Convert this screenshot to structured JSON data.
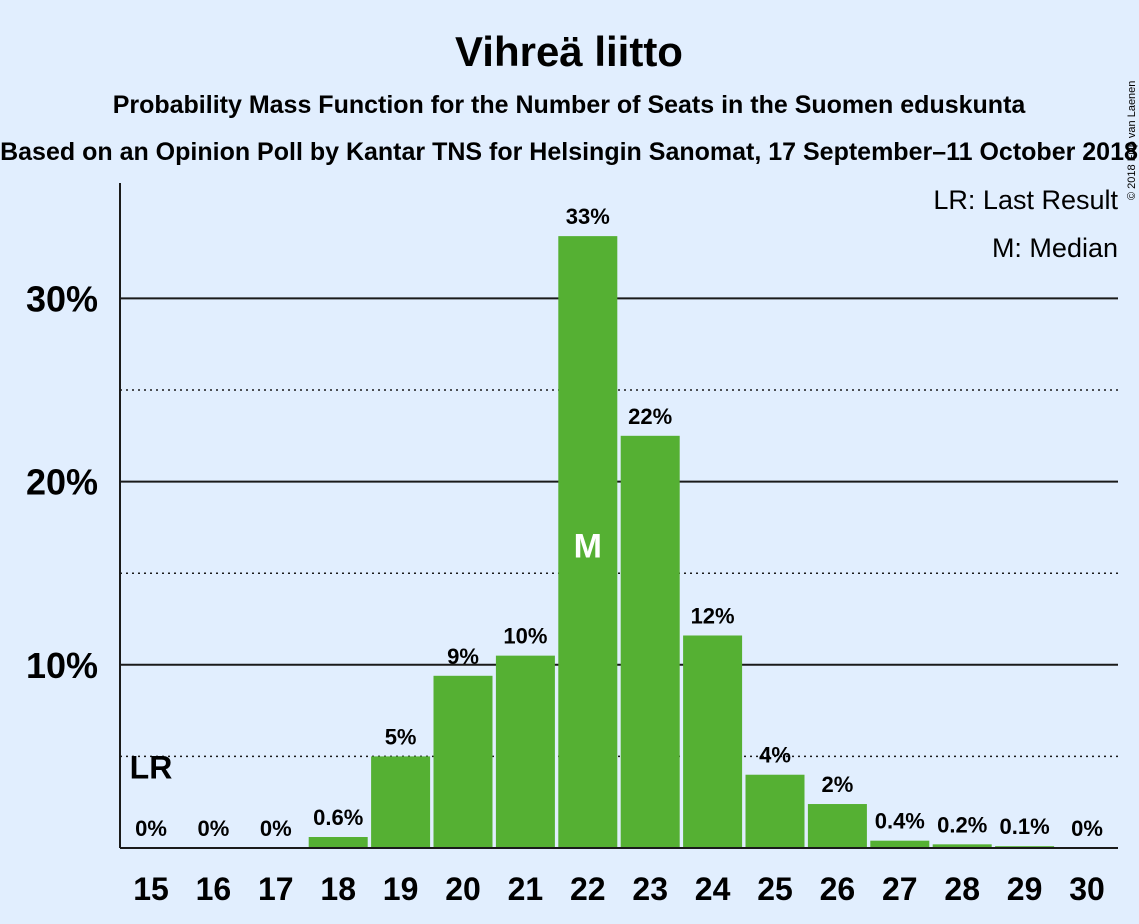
{
  "chart_data": {
    "type": "bar",
    "title": "Vihreä liitto",
    "subtitle_line1": "Probability Mass Function for the Number of Seats in the Suomen eduskunta",
    "subtitle_line2": "Based on an Opinion Poll by Kantar TNS for Helsingin Sanomat, 17 September–11 October 2018",
    "copyright": "© 2018 Filip van Laenen",
    "categories": [
      "15",
      "16",
      "17",
      "18",
      "19",
      "20",
      "21",
      "22",
      "23",
      "24",
      "25",
      "26",
      "27",
      "28",
      "29",
      "30"
    ],
    "values": [
      0,
      0,
      0,
      0.6,
      5.0,
      9.4,
      10.5,
      33.4,
      22.5,
      11.6,
      4.0,
      2.4,
      0.4,
      0.2,
      0.1,
      0
    ],
    "value_labels": [
      "0%",
      "0%",
      "0%",
      "0.6%",
      "5%",
      "9%",
      "10%",
      "33%",
      "22%",
      "12%",
      "4%",
      "2%",
      "0.4%",
      "0.2%",
      "0.1%",
      "0%"
    ],
    "yticks": [
      {
        "value": 10,
        "label": "10%"
      },
      {
        "value": 20,
        "label": "20%"
      },
      {
        "value": 30,
        "label": "30%"
      }
    ],
    "minor_gridlines": [
      5,
      15,
      25
    ],
    "ylim": [
      0,
      36.3
    ],
    "bar_color": "#55b033",
    "last_result": {
      "category": "15",
      "marker": "LR"
    },
    "median": {
      "category": "22",
      "marker": "M"
    },
    "legend": [
      "LR: Last Result",
      "M: Median"
    ],
    "legend_position": "top-right",
    "grid": true
  }
}
